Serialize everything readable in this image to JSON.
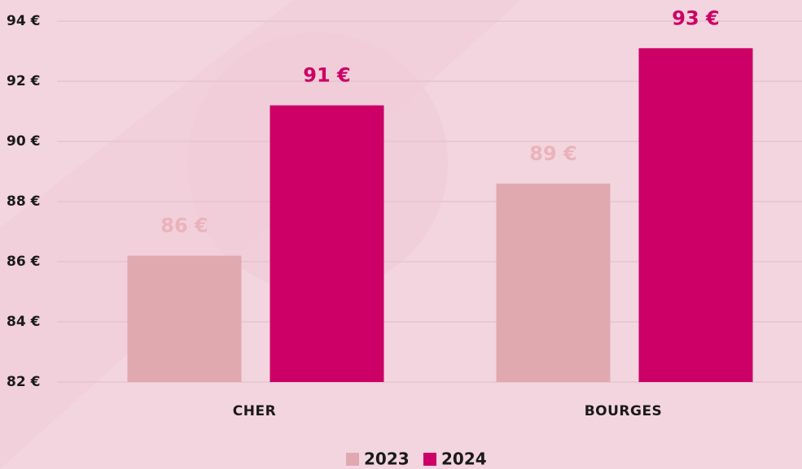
{
  "chart_data": {
    "type": "bar",
    "categories": [
      "CHER",
      "BOURGES"
    ],
    "series": [
      {
        "name": "2023",
        "color": "#e0a9b0",
        "values": [
          86.2,
          88.6
        ],
        "value_labels": [
          "86 €",
          "89 €"
        ]
      },
      {
        "name": "2024",
        "color": "#cc0066",
        "values": [
          91.2,
          93.1
        ],
        "value_labels": [
          "91 €",
          "93 €"
        ]
      }
    ],
    "ylim": [
      82,
      94
    ],
    "yticks": [
      {
        "value": 82,
        "label": "82 €"
      },
      {
        "value": 84,
        "label": "84 €"
      },
      {
        "value": 86,
        "label": "86 €"
      },
      {
        "value": 88,
        "label": "88 €"
      },
      {
        "value": 90,
        "label": "90 €"
      },
      {
        "value": 92,
        "label": "92 €"
      },
      {
        "value": 94,
        "label": "94 €"
      }
    ],
    "grid": true,
    "legend": "bottom"
  }
}
